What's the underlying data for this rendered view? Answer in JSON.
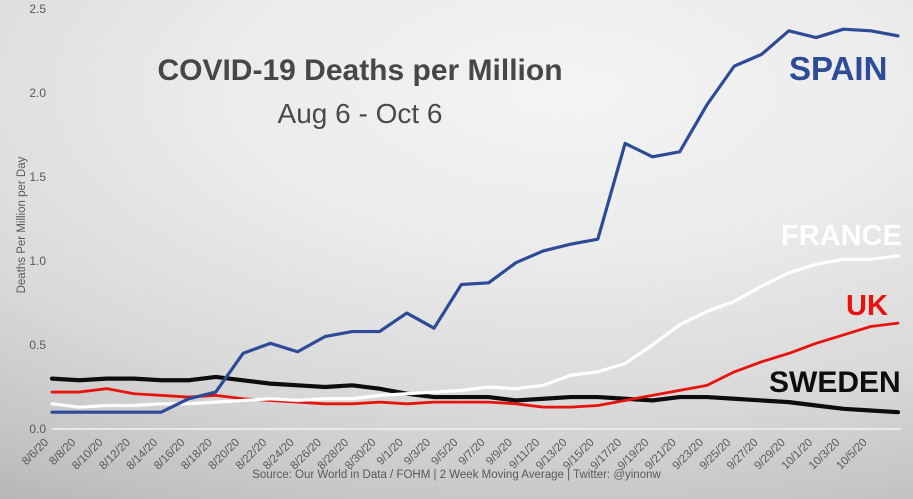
{
  "chart": {
    "title": "COVID-19 Deaths per Million",
    "subtitle": "Aug 6 - Oct 6",
    "y_axis_title": "Deaths Per Million per Day",
    "source_line": "Source: Our World in Data / FOHM | 2 Week Moving Average | Twitter: @yinonw"
  },
  "chart_data": {
    "type": "line",
    "title": "COVID-19 Deaths per Million",
    "subtitle": "Aug 6 - Oct 6",
    "ylabel": "Deaths Per Million per Day",
    "ylim": [
      0,
      2.5
    ],
    "grid": false,
    "legend_position": "labels-at-line-ends",
    "y_ticks": [
      "0.0",
      "0.5",
      "1.0",
      "1.5",
      "2.0",
      "2.5"
    ],
    "x_tick_labels": [
      "8/6/20",
      "8/8/20",
      "8/10/20",
      "8/12/20",
      "8/14/20",
      "8/16/20",
      "8/18/20",
      "8/20/20",
      "8/22/20",
      "8/24/20",
      "8/26/20",
      "8/28/20",
      "8/30/20",
      "9/1/20",
      "9/3/20",
      "9/5/20",
      "9/7/20",
      "9/9/20",
      "9/11/20",
      "9/13/20",
      "9/15/20",
      "9/17/20",
      "9/19/20",
      "9/21/20",
      "9/23/20",
      "9/25/20",
      "9/27/20",
      "9/29/20",
      "10/1/20",
      "10/3/20",
      "10/5/20"
    ],
    "x_note": "daily series Aug 6 - Oct 6 2020, values sampled every 2 days plus final day",
    "series": [
      {
        "name": "SPAIN",
        "color": "#2d4b96",
        "stroke_width": 3.2,
        "values": [
          0.1,
          0.1,
          0.1,
          0.1,
          0.1,
          0.18,
          0.22,
          0.45,
          0.51,
          0.46,
          0.55,
          0.58,
          0.58,
          0.69,
          0.6,
          0.86,
          0.87,
          0.99,
          1.06,
          1.1,
          1.13,
          1.7,
          1.62,
          1.65,
          1.93,
          2.16,
          2.23,
          2.37,
          2.33,
          2.38,
          2.37,
          2.34
        ]
      },
      {
        "name": "FRANCE",
        "color": "#ffffff",
        "stroke_width": 3.2,
        "values": [
          0.15,
          0.13,
          0.14,
          0.14,
          0.15,
          0.15,
          0.16,
          0.17,
          0.18,
          0.17,
          0.18,
          0.18,
          0.2,
          0.21,
          0.22,
          0.23,
          0.25,
          0.24,
          0.26,
          0.32,
          0.34,
          0.39,
          0.5,
          0.62,
          0.7,
          0.76,
          0.85,
          0.93,
          0.98,
          1.01,
          1.01,
          1.03
        ]
      },
      {
        "name": "UK",
        "color": "#e8130c",
        "stroke_width": 2.8,
        "values": [
          0.22,
          0.22,
          0.24,
          0.21,
          0.2,
          0.19,
          0.2,
          0.18,
          0.17,
          0.16,
          0.15,
          0.15,
          0.16,
          0.15,
          0.16,
          0.16,
          0.16,
          0.15,
          0.13,
          0.13,
          0.14,
          0.17,
          0.2,
          0.23,
          0.26,
          0.34,
          0.4,
          0.45,
          0.51,
          0.56,
          0.61,
          0.63
        ]
      },
      {
        "name": "SWEDEN",
        "color": "#0d0d0d",
        "stroke_width": 4.2,
        "values": [
          0.3,
          0.29,
          0.3,
          0.3,
          0.29,
          0.29,
          0.31,
          0.29,
          0.27,
          0.26,
          0.25,
          0.26,
          0.24,
          0.21,
          0.19,
          0.19,
          0.19,
          0.17,
          0.18,
          0.19,
          0.19,
          0.18,
          0.17,
          0.19,
          0.19,
          0.18,
          0.17,
          0.16,
          0.14,
          0.12,
          0.11,
          0.1
        ]
      }
    ]
  }
}
